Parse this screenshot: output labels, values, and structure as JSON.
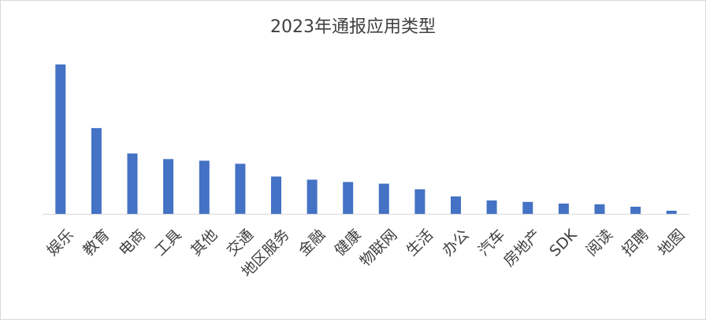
{
  "chart_data": {
    "type": "bar",
    "title": "2023年通报应用类型",
    "xlabel": "",
    "ylabel": "",
    "categories": [
      "娱乐",
      "教育",
      "电商",
      "工具",
      "其他",
      "交通",
      "地区服务",
      "金融",
      "健康",
      "物联网",
      "生活",
      "办公",
      "汽车",
      "房地产",
      "SDK",
      "阅读",
      "招聘",
      "地图"
    ],
    "values": [
      100,
      57.4,
      40.4,
      36.7,
      35.6,
      33.5,
      25,
      22.9,
      21.3,
      20.2,
      16.5,
      11.7,
      9,
      8,
      6.9,
      6.4,
      4.8,
      2.1
    ],
    "ylim": [
      0,
      100
    ],
    "grid": false,
    "legend": "none",
    "bar_color": "#4472c4",
    "axis_color": "#d9d9d9"
  }
}
